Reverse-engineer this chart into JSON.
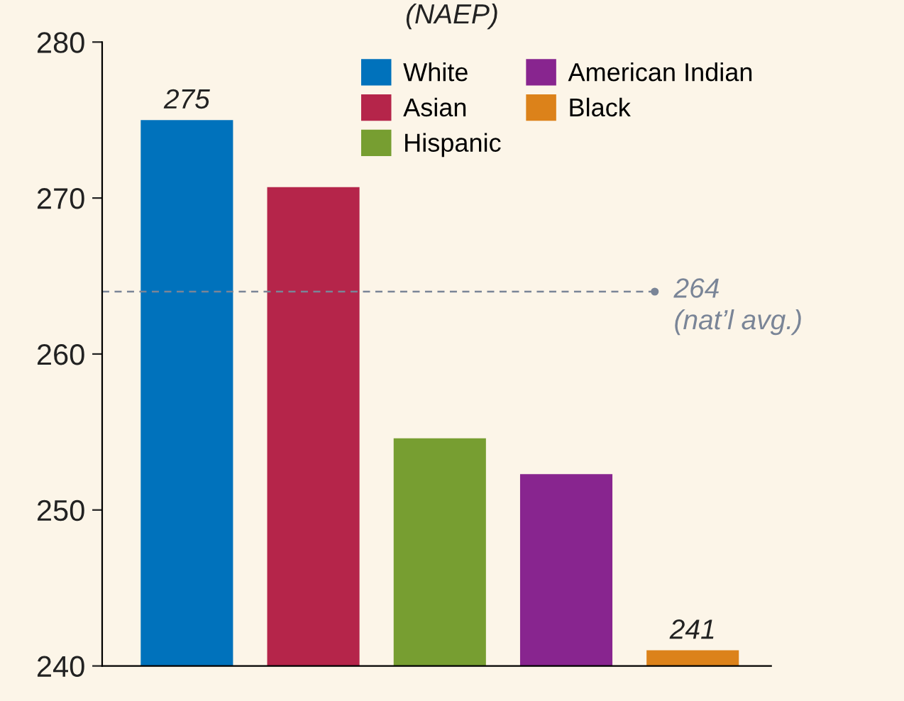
{
  "chart_data": {
    "type": "bar",
    "title": "(NAEP)",
    "categories": [
      null,
      null,
      null,
      null,
      null
    ],
    "series": [
      {
        "name": "White",
        "color": "#0072bc",
        "values": [
          275,
          null,
          null,
          null,
          null
        ],
        "value_labels": [
          "275",
          null,
          null,
          null,
          null
        ]
      },
      {
        "name": "Asian",
        "color": "#b5254a",
        "values": [
          null,
          270.7,
          null,
          null,
          null
        ]
      },
      {
        "name": "Hispanic",
        "color": "#779e31",
        "values": [
          null,
          null,
          254.6,
          null,
          null
        ]
      },
      {
        "name": "American Indian",
        "color": "#88258f",
        "values": [
          null,
          null,
          null,
          252.3,
          null
        ]
      },
      {
        "name": "Black",
        "color": "#dc821a",
        "values": [
          null,
          null,
          null,
          null,
          241
        ],
        "value_labels": [
          null,
          null,
          null,
          null,
          "241"
        ]
      }
    ],
    "ylim": [
      240,
      280
    ],
    "yticks": [
      240,
      250,
      260,
      270,
      280
    ],
    "ref_lines": [
      {
        "axis": "y",
        "value": 264,
        "label": "264\n(nat’l avg.)",
        "color": "#7a8597",
        "line_style": "dashed"
      }
    ],
    "tick_labels": "y",
    "legend": "top right",
    "grid": false
  }
}
